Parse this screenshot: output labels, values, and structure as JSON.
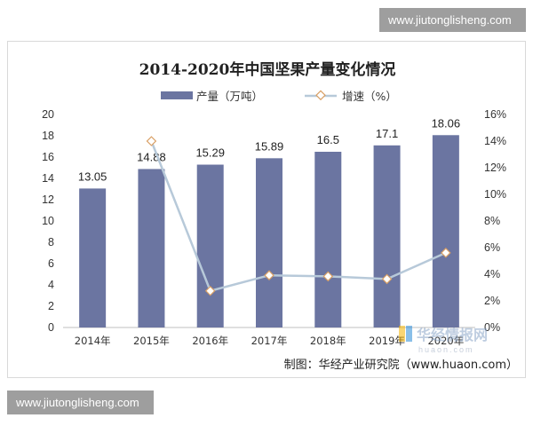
{
  "watermark": {
    "top": "www.jiutonglisheng.com",
    "bottom": "www.jiutonglisheng.com",
    "logo_text": "华经情报网",
    "logo_subtext": "huaon.com"
  },
  "source_note": "制图：华经产业研究院（www.huaon.com）",
  "colors": {
    "bar": "#6b75a1",
    "line": "#b7c9d9",
    "marker": "#d9a066"
  },
  "chart_data": {
    "type": "bar",
    "title": "2014-2020年中国坚果产量变化情况",
    "categories": [
      "2014年",
      "2015年",
      "2016年",
      "2017年",
      "2018年",
      "2019年",
      "2020年"
    ],
    "series": [
      {
        "name": "产量（万吨）",
        "type": "bar",
        "axis": "left",
        "values": [
          13.05,
          14.88,
          15.29,
          15.89,
          16.5,
          17.1,
          18.06
        ],
        "labels": [
          "13.05",
          "14.88",
          "15.29",
          "15.89",
          "16.5",
          "17.1",
          "18.06"
        ]
      },
      {
        "name": "增速（%）",
        "type": "line",
        "axis": "right",
        "values": [
          null,
          14.0,
          2.75,
          3.92,
          3.84,
          3.64,
          5.61
        ]
      }
    ],
    "y_left": {
      "min": 0,
      "max": 20,
      "step": 2,
      "ticks": [
        "0",
        "2",
        "4",
        "6",
        "8",
        "10",
        "12",
        "14",
        "16",
        "18",
        "20"
      ]
    },
    "y_right": {
      "min": 0,
      "max": 16,
      "step": 2,
      "ticks": [
        "0%",
        "2%",
        "4%",
        "6%",
        "8%",
        "10%",
        "12%",
        "14%",
        "16%"
      ]
    },
    "legend": "top",
    "grid": false
  }
}
